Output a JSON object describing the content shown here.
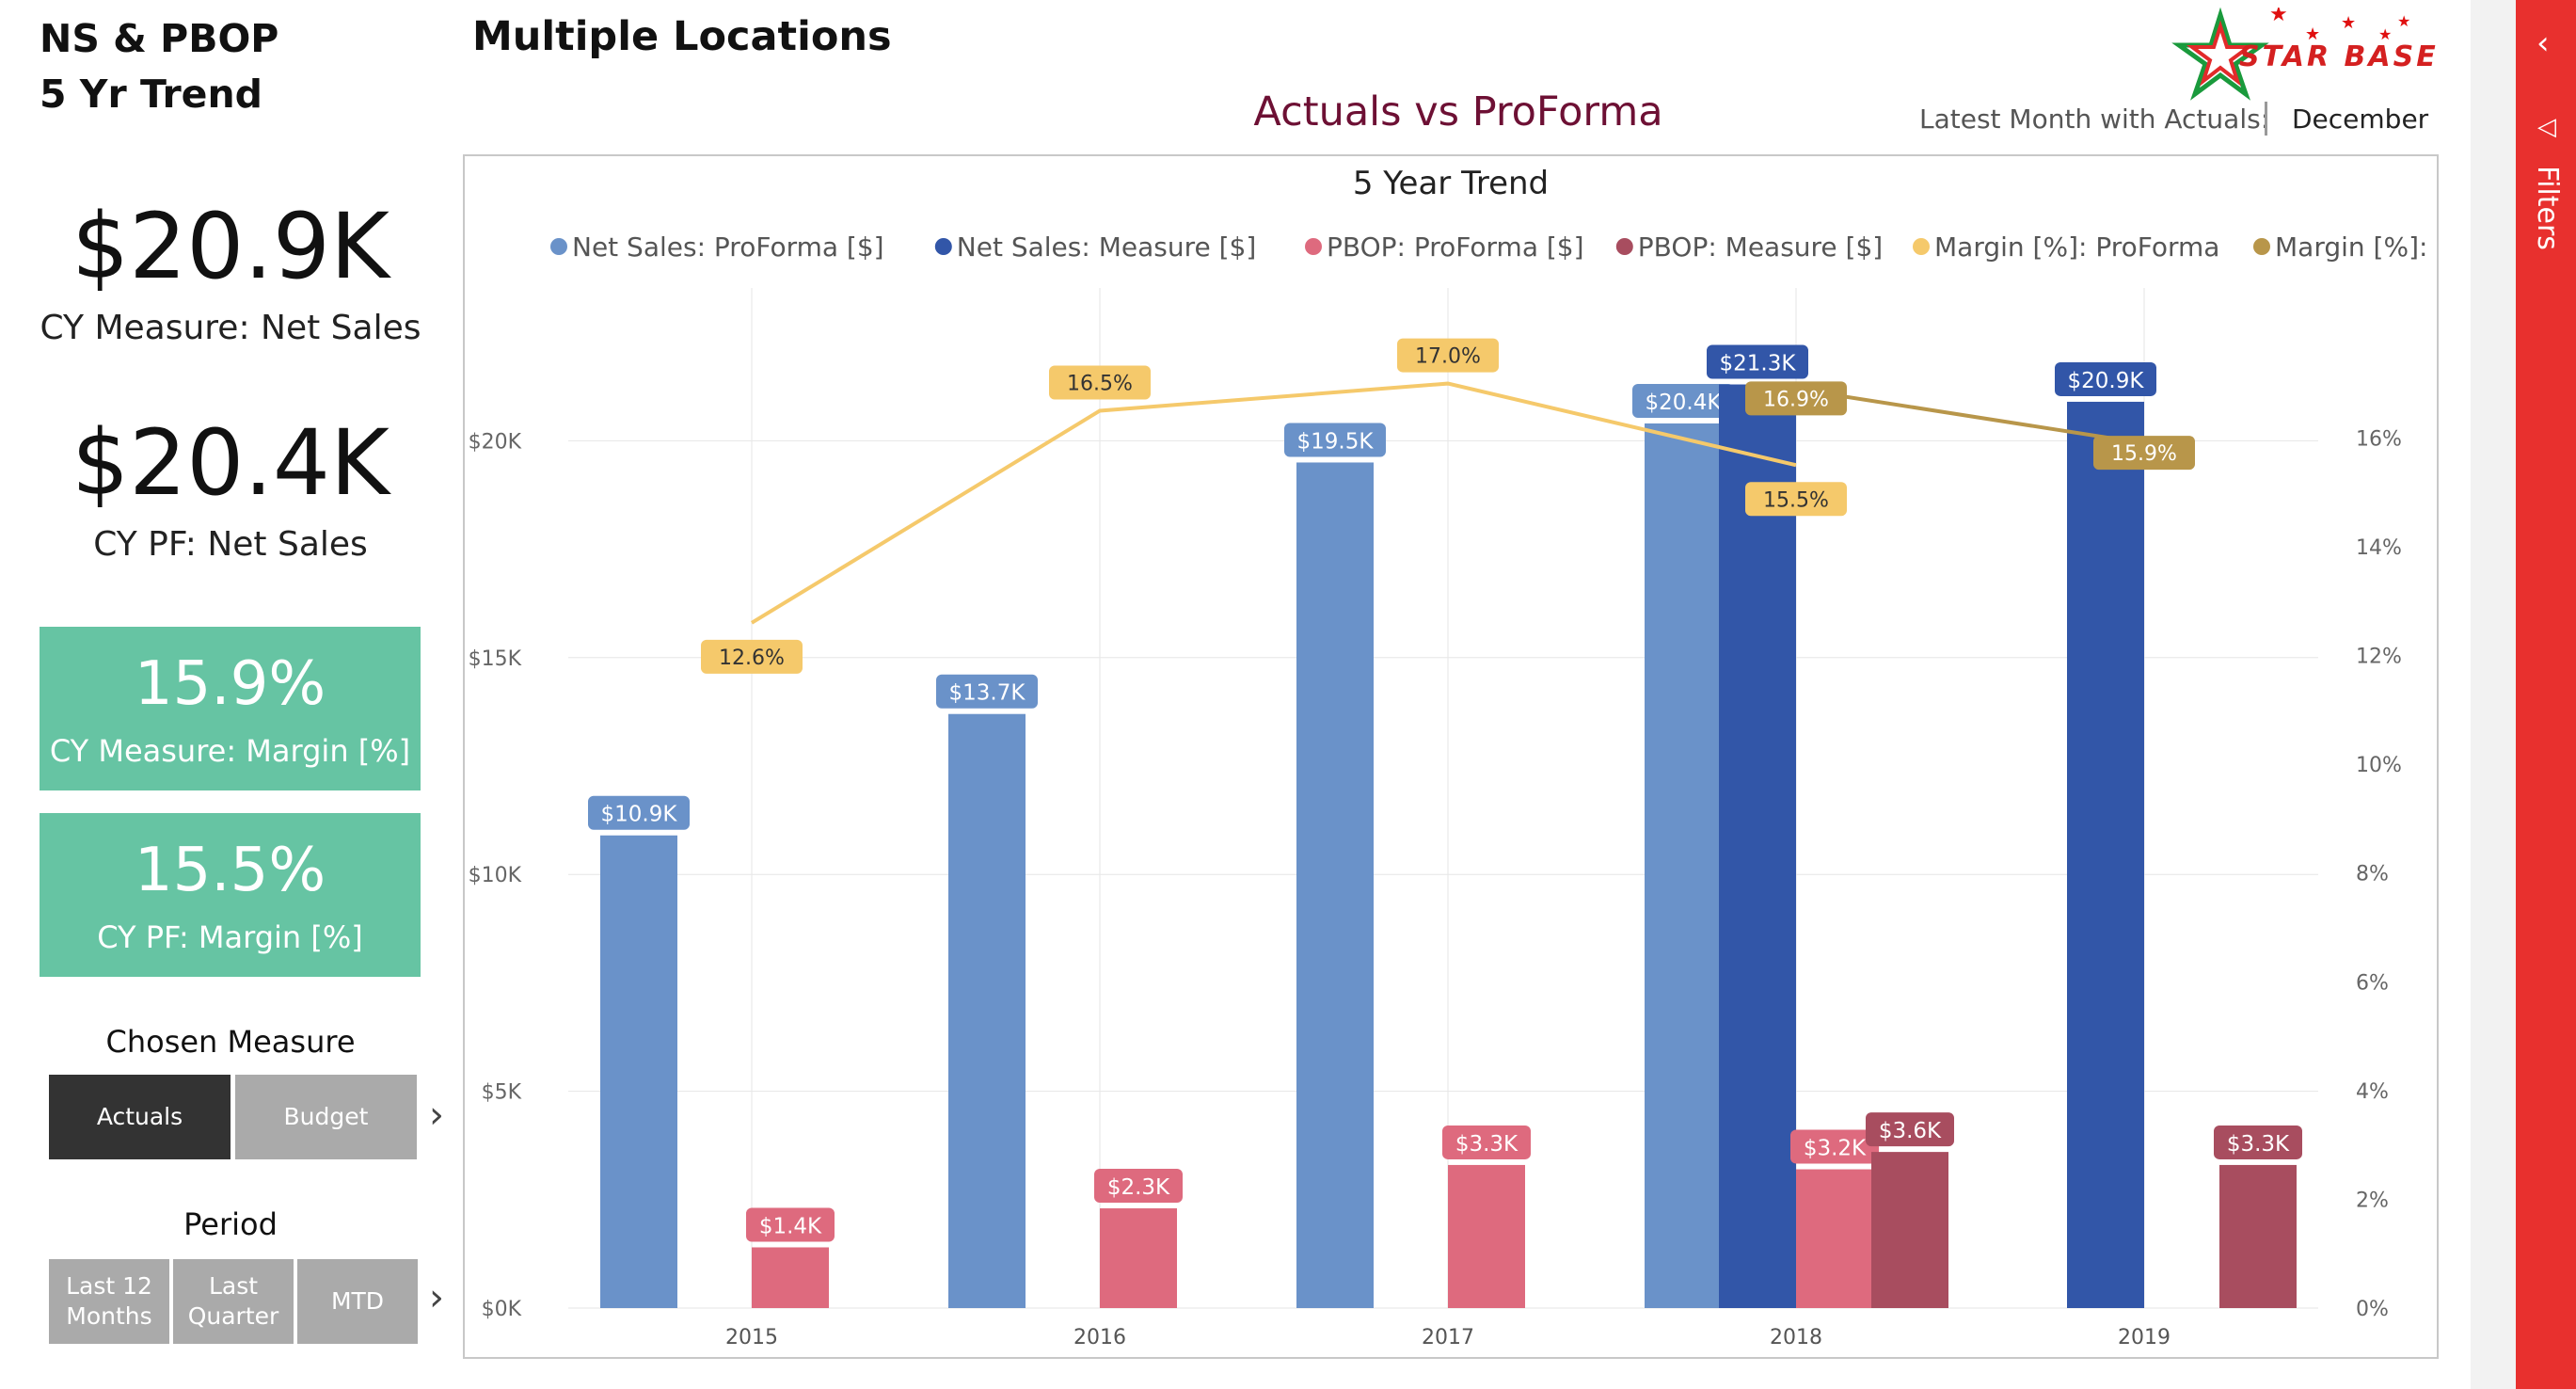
{
  "report": {
    "title_line1": "NS & PBOP",
    "title_line2": "5 Yr Trend",
    "page_title": "Multiple Locations"
  },
  "kpis": [
    {
      "value": "$20.9K",
      "label": "CY Measure: Net Sales"
    },
    {
      "value": "$20.4K",
      "label": "CY PF: Net Sales"
    }
  ],
  "cards": [
    {
      "value": "15.9%",
      "label": "CY Measure: Margin [%]"
    },
    {
      "value": "15.5%",
      "label": "CY PF: Margin [%]"
    }
  ],
  "measure_slicer": {
    "title": "Chosen Measure",
    "options": [
      "Actuals",
      "Budget"
    ],
    "selected": "Actuals"
  },
  "period_slicer": {
    "title": "Period",
    "options": [
      "Last 12 Months",
      "Last Quarter",
      "MTD"
    ]
  },
  "header": {
    "chart_heading": "Actuals vs ProForma",
    "latest_label": "Latest Month with Actuals:",
    "latest_value": "December",
    "logo_text": "STAR BASE"
  },
  "filters": {
    "label": "Filters"
  },
  "colors": {
    "ns_pf": "#6a92c9",
    "ns_measure": "#3256a8",
    "pbop_pf": "#de6a7e",
    "pbop_measure": "#a84d5f",
    "margin_pf": "#f5c96b",
    "margin_measure": "#b8964a",
    "kpi_card": "#66c4a3",
    "filters": "#e8302e",
    "title": "#6d1034"
  },
  "chart_data": {
    "type": "bar",
    "title": "5 Year Trend",
    "categories": [
      "2015",
      "2016",
      "2017",
      "2018",
      "2019"
    ],
    "y_left": {
      "ticks": [
        "$0K",
        "$5K",
        "$10K",
        "$15K",
        "$20K"
      ],
      "lim": [
        0,
        22700
      ]
    },
    "y_right": {
      "ticks": [
        "0%",
        "2%",
        "4%",
        "6%",
        "8%",
        "10%",
        "12%",
        "14%",
        "16%"
      ],
      "lim": [
        0,
        18.1
      ]
    },
    "grid": true,
    "legend_position": "top",
    "series": [
      {
        "name": "Net Sales: ProForma [$]",
        "kind": "bar",
        "color": "#6a92c9",
        "values": [
          10900,
          13700,
          19500,
          20400,
          null
        ],
        "labels": [
          "$10.9K",
          "$13.7K",
          "$19.5K",
          "$20.4K",
          null
        ]
      },
      {
        "name": "Net Sales: Measure [$]",
        "kind": "bar",
        "color": "#3256a8",
        "values": [
          null,
          null,
          null,
          21300,
          20900
        ],
        "labels": [
          null,
          null,
          null,
          "$21.3K",
          "$20.9K"
        ]
      },
      {
        "name": "PBOP: ProForma [$]",
        "kind": "bar",
        "color": "#de6a7e",
        "values": [
          1400,
          2300,
          3300,
          3200,
          null
        ],
        "labels": [
          "$1.4K",
          "$2.3K",
          "$3.3K",
          "$3.2K",
          null
        ]
      },
      {
        "name": "PBOP: Measure [$]",
        "kind": "bar",
        "color": "#a84d5f",
        "values": [
          null,
          null,
          null,
          3600,
          3300
        ],
        "labels": [
          null,
          null,
          null,
          "$3.6K",
          "$3.3K"
        ]
      },
      {
        "name": "Margin [%]: ProForma",
        "kind": "line",
        "color": "#f5c96b",
        "values": [
          12.6,
          16.5,
          17.0,
          15.5,
          null
        ],
        "labels": [
          "12.6%",
          "16.5%",
          "17.0%",
          "15.5%",
          null
        ]
      },
      {
        "name": "Margin [%]: Measure",
        "kind": "line",
        "color": "#b8964a",
        "values": [
          null,
          null,
          null,
          16.9,
          15.9
        ],
        "labels": [
          null,
          null,
          null,
          "16.9%",
          "15.9%"
        ]
      }
    ]
  }
}
